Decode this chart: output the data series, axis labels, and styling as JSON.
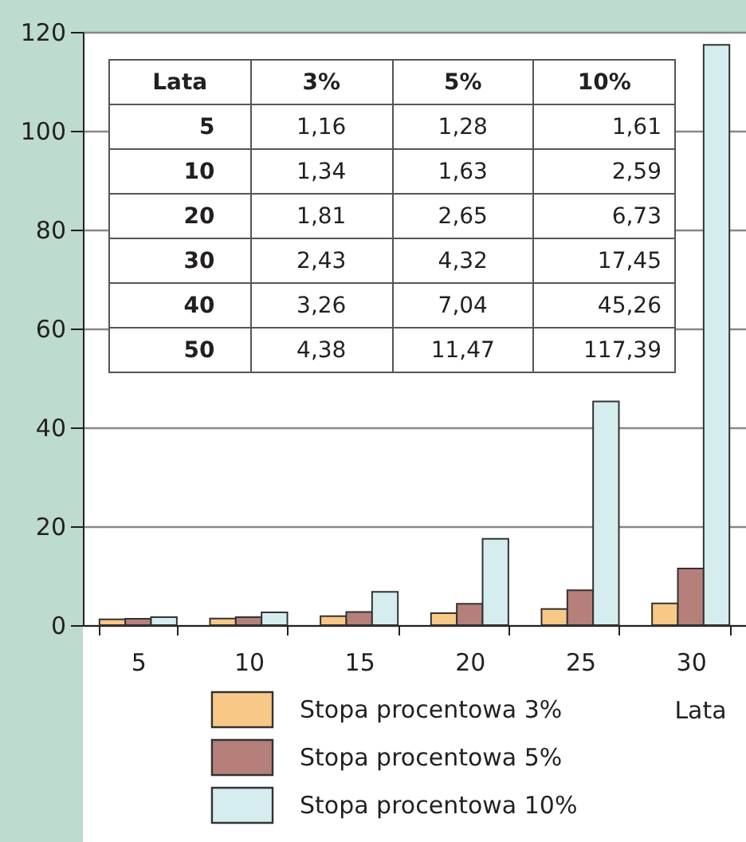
{
  "chart_data": {
    "type": "bar",
    "xlabel": "Lata",
    "categories": [
      "5",
      "10",
      "15",
      "20",
      "25",
      "30"
    ],
    "series": [
      {
        "name": "Stopa procentowa 3%",
        "color": "#f8c887",
        "values": [
          1.16,
          1.34,
          1.81,
          2.43,
          3.26,
          4.38
        ]
      },
      {
        "name": "Stopa procentowa 5%",
        "color": "#b5807a",
        "values": [
          1.28,
          1.63,
          2.65,
          4.32,
          7.04,
          11.47
        ]
      },
      {
        "name": "Stopa procentowa 10%",
        "color": "#d5edee",
        "values": [
          1.61,
          2.59,
          6.73,
          17.45,
          45.26,
          117.39
        ]
      }
    ],
    "annotations": [
      "Lata",
      "3%",
      "5%",
      "10%",
      "5",
      "1,16",
      "1,28",
      "1,61",
      "10",
      "1,34",
      "1,63",
      "2,59",
      "20",
      "1,81",
      "2,65",
      "6,73",
      "30",
      "2,43",
      "4,32",
      "17,45",
      "40",
      "3,26",
      "7,04",
      "45,26",
      "50",
      "4,38",
      "11,47",
      "117,39"
    ],
    "ylim": [
      0,
      120
    ],
    "yticks": [
      0,
      20,
      40,
      60,
      80,
      100,
      120
    ],
    "grid": "y",
    "legend": "bottom"
  }
}
